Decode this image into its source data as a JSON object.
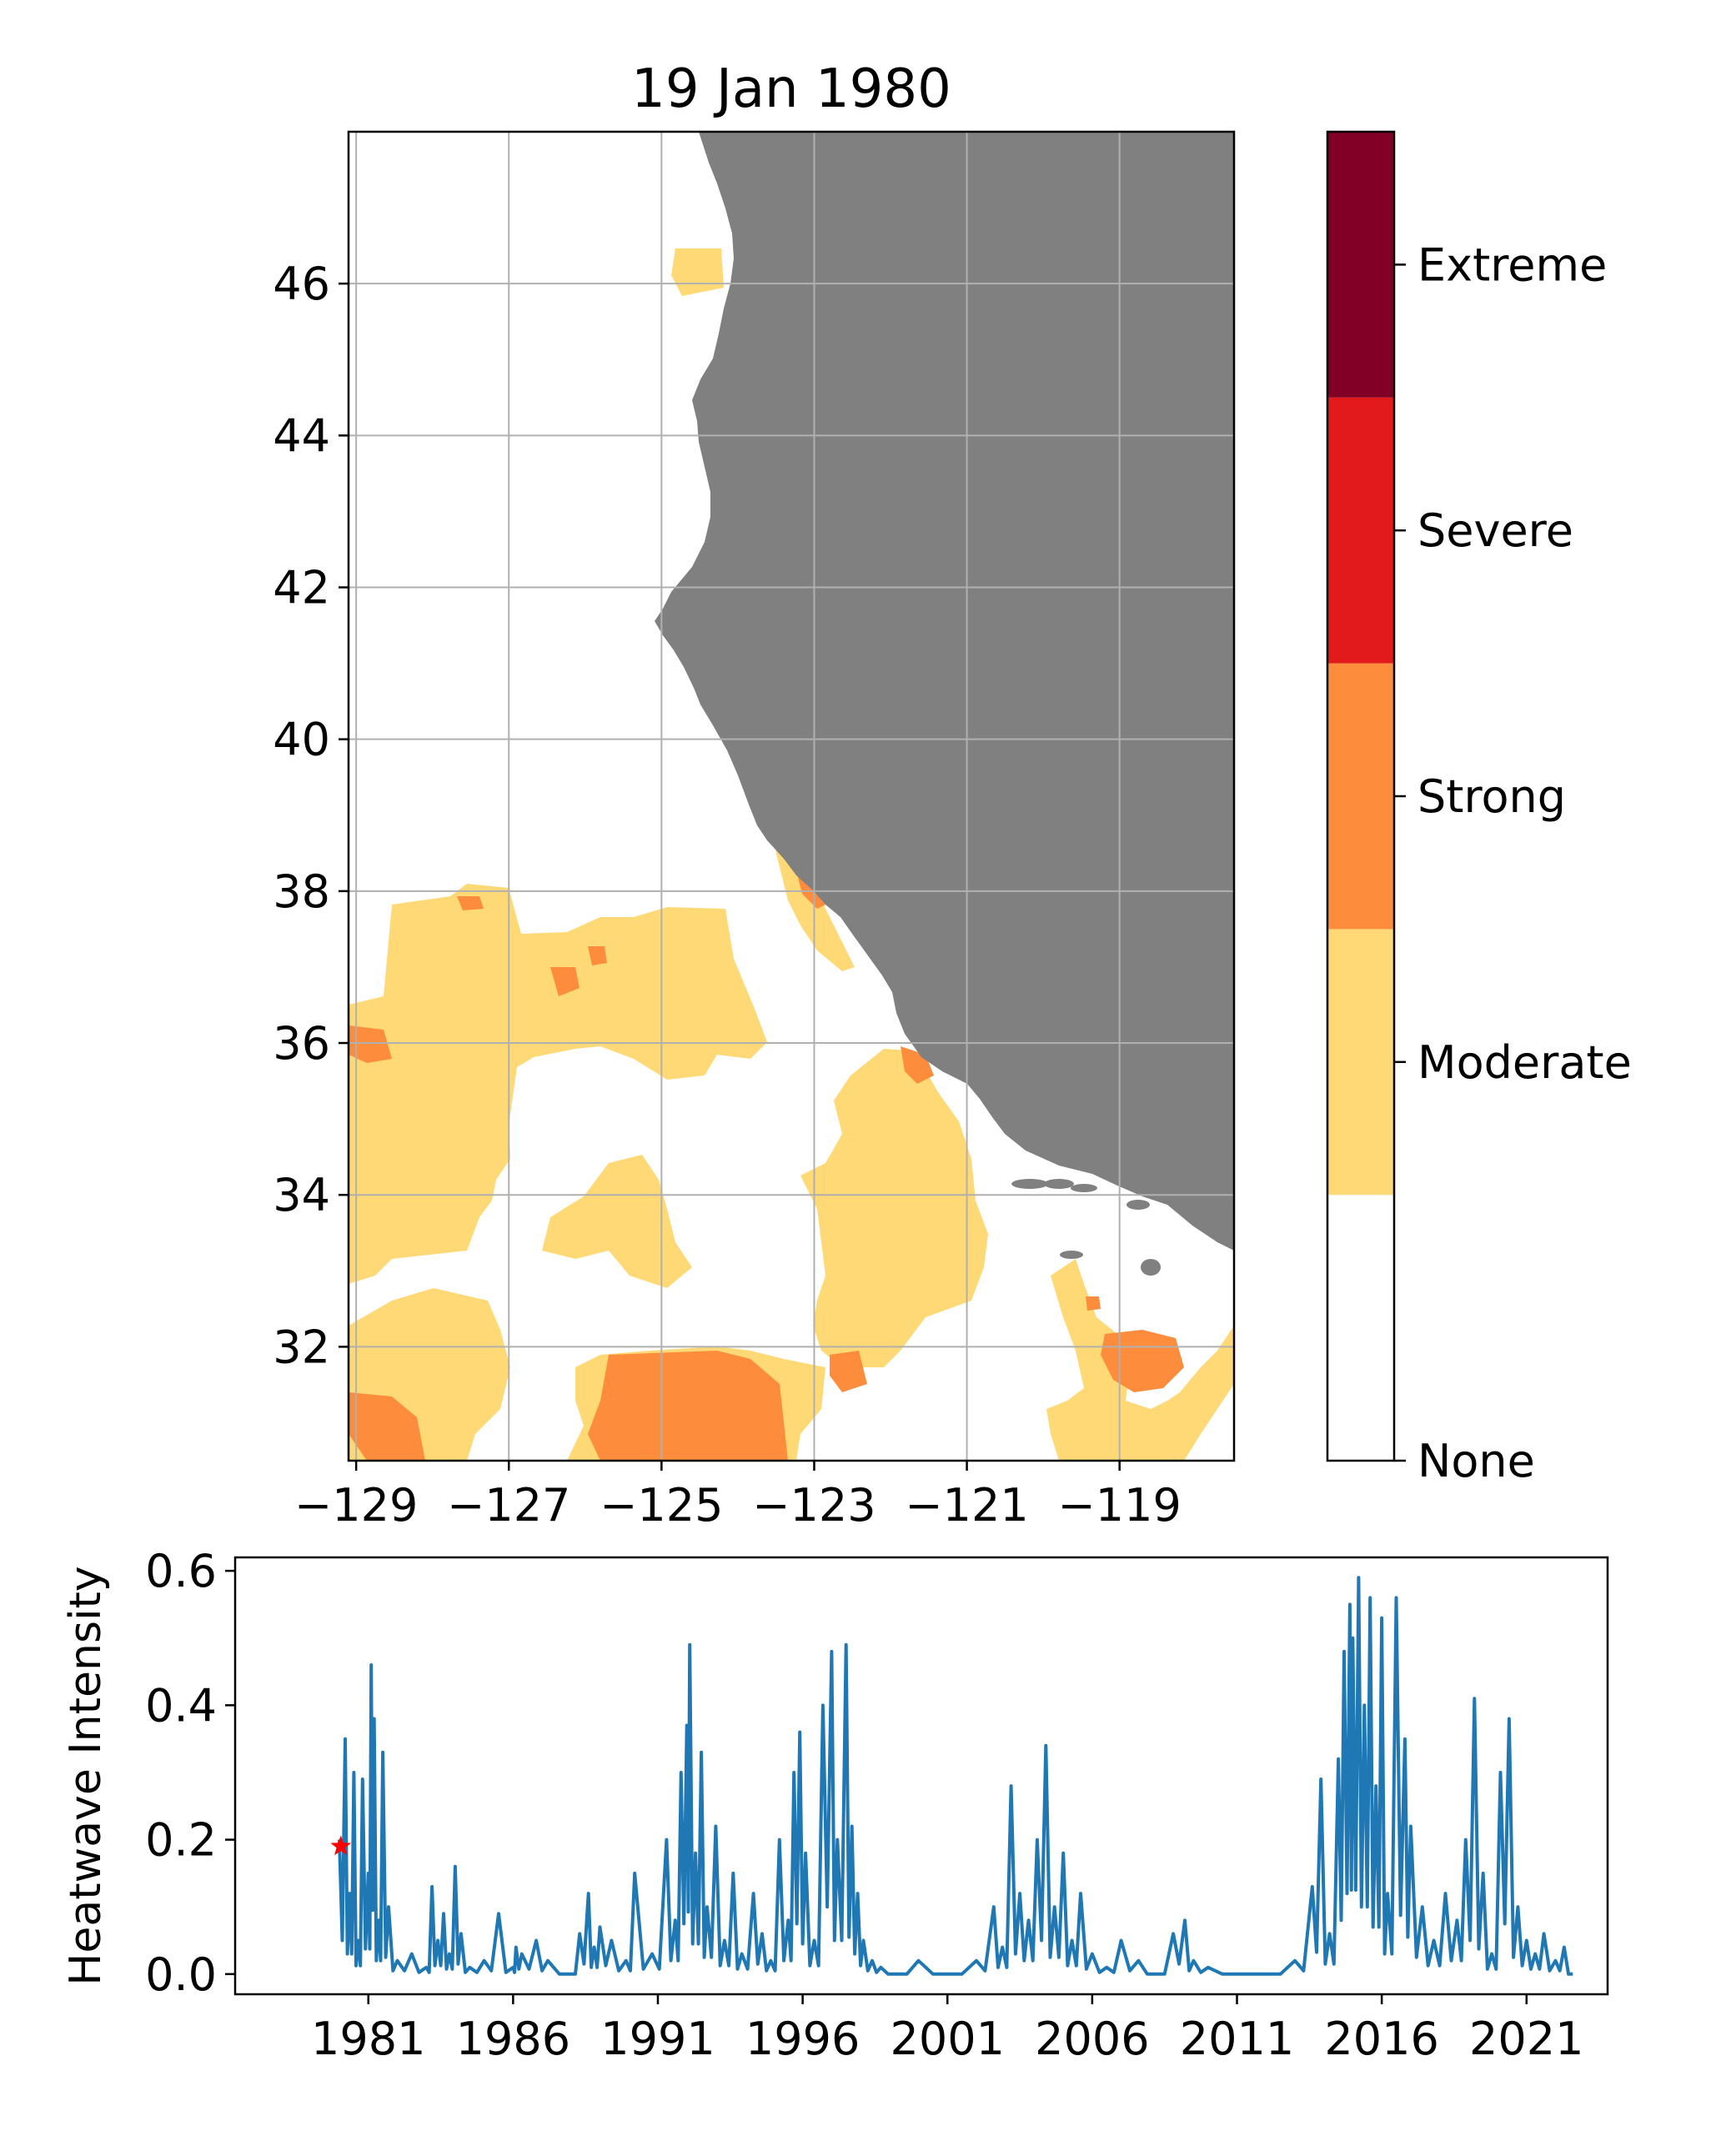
{
  "map": {
    "title": "19 Jan 1980",
    "x_ticks": [
      "−129",
      "−127",
      "−125",
      "−123",
      "−121",
      "−119"
    ],
    "x_tick_values": [
      -129,
      -127,
      -125,
      -123,
      -121,
      -119
    ],
    "y_ticks": [
      "46",
      "44",
      "42",
      "40",
      "38",
      "36",
      "34",
      "32"
    ],
    "y_tick_values": [
      46,
      44,
      42,
      40,
      38,
      36,
      34,
      32
    ],
    "lon_range": [
      -129.1,
      -117.5
    ],
    "lat_range": [
      30.5,
      48
    ],
    "grid": true,
    "land_color": "#808080",
    "none_color": "#ffffff"
  },
  "colorbar": {
    "labels": [
      "None",
      "Moderate",
      "Strong",
      "Severe",
      "Extreme"
    ],
    "colors": [
      "#ffffff",
      "#fed976",
      "#fd8d3c",
      "#e31a1c",
      "#800026"
    ]
  },
  "chart_data": [
    {
      "type": "heatmap",
      "title": "19 Jan 1980",
      "categories": [
        "None",
        "Moderate",
        "Strong",
        "Severe",
        "Extreme"
      ],
      "xlim": [
        -129.1,
        -117.5
      ],
      "ylim": [
        30.5,
        48
      ],
      "x_ticks": [
        -129,
        -127,
        -125,
        -123,
        -121,
        -119
      ],
      "y_ticks": [
        32,
        34,
        36,
        38,
        40,
        42,
        44,
        46
      ],
      "grid": true
    },
    {
      "type": "line",
      "ylabel": "Heatwave Intensity",
      "xlabel": "",
      "x_tick_labels": [
        "1981",
        "1986",
        "1991",
        "1996",
        "2001",
        "2006",
        "2011",
        "2016",
        "2021"
      ],
      "y_tick_labels": [
        "0.0",
        "0.2",
        "0.4",
        "0.6"
      ],
      "xlim": [
        1976.4,
        2023.8
      ],
      "ylim": [
        -0.03,
        0.62
      ],
      "color": "#1f77b4",
      "marker": {
        "x": 1980.05,
        "y": 0.19,
        "color": "#ff0000",
        "shape": "star"
      },
      "x": [
        1980.0,
        1980.2,
        1980.35,
        1980.5,
        1980.65,
        1980.8,
        1981.0,
        1981.1,
        1981.2,
        1981.35,
        1981.5,
        1981.7,
        1982.0,
        1982.5,
        1983.0,
        1983.2,
        1983.4,
        1983.6,
        1983.8,
        1984.0,
        1984.2,
        1984.5,
        1985.0,
        1985.5,
        1986.0,
        1986.1,
        1986.3,
        1986.8,
        1987.2,
        1988.0,
        1988.3,
        1988.6,
        1988.8,
        1989.0,
        1989.4,
        1989.9,
        1990.2,
        1990.8,
        1991.3,
        1991.6,
        1991.8,
        1992.0,
        1992.1,
        1992.3,
        1992.5,
        1992.7,
        1993.0,
        1993.3,
        1993.6,
        1993.9,
        1994.3,
        1994.6,
        1994.9,
        1995.2,
        1995.5,
        1995.7,
        1995.9,
        1996.1,
        1996.4,
        1996.7,
        1997.0,
        1997.2,
        1997.5,
        1997.7,
        1997.9,
        1998.1,
        1998.4,
        1998.7,
        1999.2,
        2000.0,
        2001.0,
        2002.0,
        2002.6,
        2002.9,
        2003.2,
        2003.5,
        2003.8,
        2004.1,
        2004.4,
        2004.7,
        2005.0,
        2005.3,
        2005.6,
        2006.0,
        2006.5,
        2007.0,
        2007.6,
        2008.2,
        2008.8,
        2009.2,
        2009.5,
        2010.0,
        2011.0,
        2012.0,
        2013.0,
        2013.6,
        2013.9,
        2014.2,
        2014.5,
        2014.7,
        2014.9,
        2015.0,
        2015.2,
        2015.4,
        2015.6,
        2015.8,
        2016.0,
        2016.2,
        2016.5,
        2016.8,
        2017.0,
        2017.4,
        2017.8,
        2018.2,
        2018.6,
        2018.9,
        2019.2,
        2019.5,
        2019.8,
        2020.1,
        2020.4,
        2020.7,
        2021.0,
        2021.3,
        2021.6,
        2022.0,
        2022.3,
        2022.6
      ],
      "y": [
        0.2,
        0.35,
        0.12,
        0.3,
        0.05,
        0.29,
        0.15,
        0.46,
        0.38,
        0.08,
        0.33,
        0.1,
        0.02,
        0.03,
        0.01,
        0.13,
        0.05,
        0.09,
        0.03,
        0.16,
        0.06,
        0.01,
        0.02,
        0.09,
        0.01,
        0.04,
        0.03,
        0.05,
        0.02,
        0.0,
        0.06,
        0.12,
        0.04,
        0.07,
        0.05,
        0.02,
        0.15,
        0.03,
        0.2,
        0.08,
        0.3,
        0.37,
        0.49,
        0.18,
        0.33,
        0.1,
        0.22,
        0.05,
        0.15,
        0.03,
        0.12,
        0.06,
        0.02,
        0.2,
        0.08,
        0.3,
        0.36,
        0.18,
        0.05,
        0.4,
        0.48,
        0.2,
        0.49,
        0.22,
        0.12,
        0.05,
        0.02,
        0.01,
        0.0,
        0.02,
        0.0,
        0.02,
        0.1,
        0.04,
        0.28,
        0.12,
        0.08,
        0.2,
        0.34,
        0.1,
        0.18,
        0.05,
        0.12,
        0.03,
        0.01,
        0.05,
        0.02,
        0.0,
        0.06,
        0.08,
        0.02,
        0.01,
        0.0,
        0.0,
        0.02,
        0.13,
        0.29,
        0.06,
        0.32,
        0.48,
        0.55,
        0.5,
        0.59,
        0.4,
        0.56,
        0.28,
        0.53,
        0.12,
        0.56,
        0.35,
        0.22,
        0.1,
        0.05,
        0.12,
        0.08,
        0.2,
        0.41,
        0.15,
        0.03,
        0.3,
        0.38,
        0.1,
        0.05,
        0.03,
        0.06,
        0.02,
        0.04,
        0.0
      ]
    }
  ]
}
